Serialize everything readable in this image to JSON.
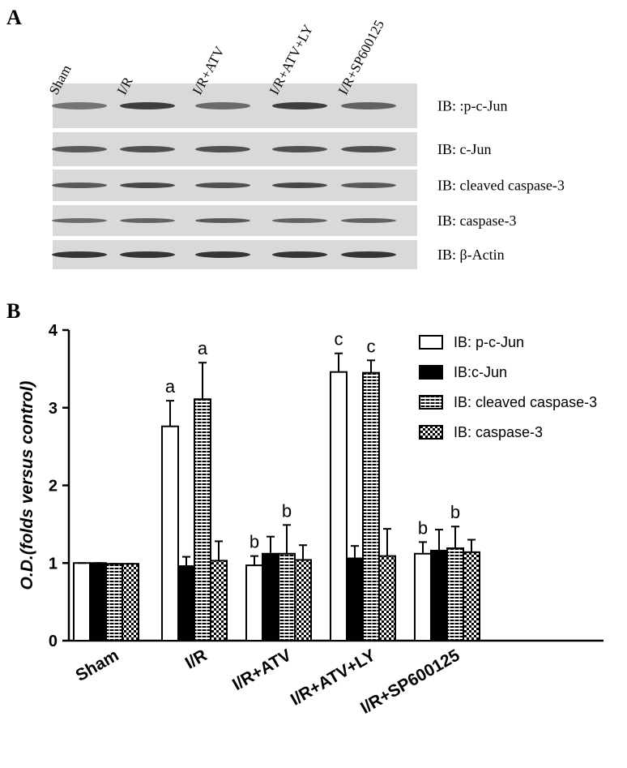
{
  "panel_labels": [
    "A",
    "B"
  ],
  "panel_a": {
    "lanes": [
      "Sham",
      "I/R",
      "I/R+ATV",
      "I/R+ATV+LY",
      "I/R+SP600125"
    ],
    "rows": [
      "IB: :p-c-Jun",
      "IB: c-Jun",
      "IB: cleaved caspase-3",
      "IB: caspase-3",
      "IB: β-Actin"
    ]
  },
  "chart_data": {
    "type": "bar",
    "y_label": "O.D.(folds versus control)",
    "categories": [
      "Sham",
      "I/R",
      "I/R+ATV",
      "I/R+ATV+LY",
      "I/R+SP600125"
    ],
    "series": [
      {
        "name": "IB: p-c-Jun",
        "color": "#000000",
        "fill": "hollow",
        "values": [
          1.0,
          2.76,
          0.97,
          3.46,
          1.12
        ],
        "errors": [
          0,
          0.33,
          0.12,
          0.24,
          0.15
        ],
        "labels": [
          null,
          "a",
          "b",
          "c",
          "b"
        ]
      },
      {
        "name": "IB:c-Jun",
        "color": "#000000",
        "fill": "solid",
        "values": [
          1.0,
          0.96,
          1.12,
          1.06,
          1.16
        ],
        "errors": [
          0,
          0.12,
          0.22,
          0.16,
          0.27
        ]
      },
      {
        "name": "IB: cleaved caspase-3",
        "color": "#000000",
        "fill": "stripes",
        "values": [
          0.99,
          3.11,
          1.12,
          3.45,
          1.19
        ],
        "errors": [
          0,
          0.47,
          0.37,
          0.16,
          0.28
        ],
        "labels": [
          null,
          "a",
          "b",
          "c",
          "b"
        ]
      },
      {
        "name": "IB: caspase-3",
        "color": "#000000",
        "fill": "checker",
        "values": [
          0.99,
          1.03,
          1.04,
          1.09,
          1.14
        ],
        "errors": [
          0,
          0.25,
          0.19,
          0.35,
          0.16
        ]
      }
    ],
    "ylim": [
      0,
      4
    ],
    "yticks": [
      0,
      1,
      2,
      3,
      4
    ],
    "grid": false
  }
}
